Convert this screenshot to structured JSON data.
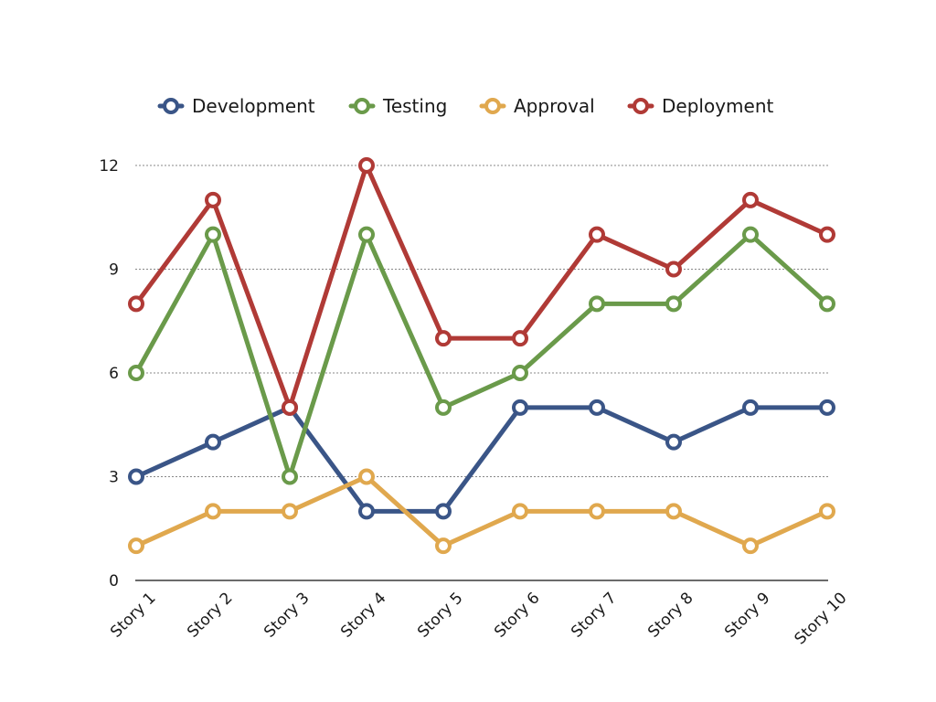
{
  "chart_data": {
    "type": "line",
    "categories": [
      "Story 1",
      "Story 2",
      "Story 3",
      "Story 4",
      "Story 5",
      "Story 6",
      "Story 7",
      "Story 8",
      "Story 9",
      "Story 10"
    ],
    "series": [
      {
        "name": "Development",
        "color": "#3a5587",
        "values": [
          3,
          4,
          5,
          2,
          2,
          5,
          5,
          4,
          5,
          5
        ]
      },
      {
        "name": "Testing",
        "color": "#6a9a4a",
        "values": [
          6,
          10,
          3,
          10,
          5,
          6,
          8,
          8,
          10,
          8
        ]
      },
      {
        "name": "Approval",
        "color": "#e0a84e",
        "values": [
          1,
          2,
          2,
          3,
          1,
          2,
          2,
          2,
          1,
          2
        ]
      },
      {
        "name": "Deployment",
        "color": "#b03a36",
        "values": [
          8,
          11,
          5,
          12,
          7,
          7,
          10,
          9,
          11,
          10
        ]
      }
    ],
    "y_ticks": [
      "0",
      "3",
      "6",
      "9",
      "12"
    ],
    "ylim": [
      0,
      12
    ],
    "grid": "horizontal dotted",
    "legend_position": "top-center",
    "title": "",
    "xlabel": "",
    "ylabel": ""
  }
}
